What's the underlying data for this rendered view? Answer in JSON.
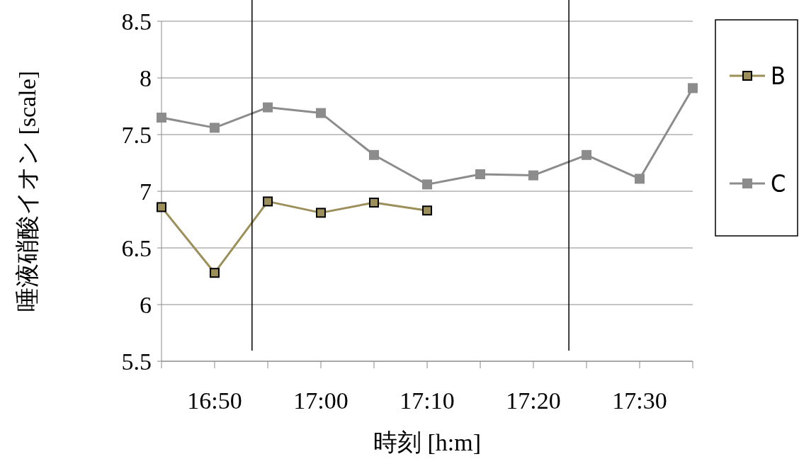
{
  "chart_data": {
    "type": "line",
    "xlabel": "時刻 [h:m]",
    "ylabel": "唾液硝酸イオン [scale]",
    "xlim": [
      16.75,
      17.5833
    ],
    "ylim": [
      5.5,
      8.5
    ],
    "xticks": [
      {
        "value": 16.75,
        "label": null
      },
      {
        "value": 16.8333,
        "label": "16:50"
      },
      {
        "value": 16.9167,
        "label": null
      },
      {
        "value": 17,
        "label": "17:00"
      },
      {
        "value": 17.0833,
        "label": null
      },
      {
        "value": 17.1667,
        "label": "17:10"
      },
      {
        "value": 17.25,
        "label": null
      },
      {
        "value": 17.3333,
        "label": "17:20"
      },
      {
        "value": 17.4167,
        "label": null
      },
      {
        "value": 17.5,
        "label": "17:30"
      },
      {
        "value": 17.5833,
        "label": null
      }
    ],
    "yticks": [
      5.5,
      6,
      6.5,
      7,
      7.5,
      8,
      8.5
    ],
    "grid": "y",
    "legend": "right",
    "marker": "square",
    "ref_lines": [
      {
        "axis": "x",
        "value": 16.892,
        "color": "#000000"
      },
      {
        "axis": "x",
        "value": 17.389,
        "color": "#000000"
      }
    ],
    "series": [
      {
        "name": "B",
        "color": "#9c8f5a",
        "x": [
          16.75,
          16.8333,
          16.9167,
          17,
          17.0833,
          17.1667
        ],
        "values": [
          6.86,
          6.28,
          6.91,
          6.81,
          6.9,
          6.83
        ]
      },
      {
        "name": "C",
        "color": "#8c8c8c",
        "x": [
          16.75,
          16.8333,
          16.9167,
          17,
          17.0833,
          17.1667,
          17.25,
          17.3333,
          17.4167,
          17.5,
          17.5833
        ],
        "values": [
          7.65,
          7.56,
          7.74,
          7.69,
          7.32,
          7.06,
          7.15,
          7.14,
          7.32,
          7.11,
          7.91
        ]
      }
    ]
  }
}
